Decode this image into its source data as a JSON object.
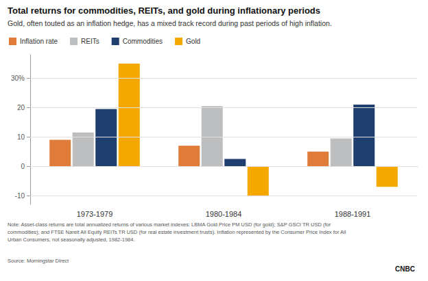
{
  "chart_data": {
    "type": "bar",
    "title": "Total returns for commodities, REITs, and gold during inflationary periods",
    "subtitle": "Gold, often touted as an inflation hedge, has a mixed track record during past periods of high inflation.",
    "categories": [
      "1973-1979",
      "1980-1984",
      "1988-1991"
    ],
    "series": [
      {
        "name": "Inflation rate",
        "color": "#E07B39",
        "values": [
          9.0,
          7.0,
          5.0
        ]
      },
      {
        "name": "REITs",
        "color": "#BCBEC0",
        "values": [
          11.5,
          20.5,
          9.5
        ]
      },
      {
        "name": "Commodities",
        "color": "#1F3F6E",
        "values": [
          19.5,
          2.5,
          21.0
        ]
      },
      {
        "name": "Gold",
        "color": "#F5A800",
        "values": [
          35.0,
          -10.0,
          -7.0
        ]
      }
    ],
    "ylim": [
      -13,
      38
    ],
    "yticks": [
      -10,
      0,
      10,
      20,
      {
        "value": 30,
        "label": "30%"
      }
    ],
    "grid": true,
    "legend": "upper left",
    "annotations": [
      "Note: Asset-class returns are total annualized returns of various market indexes: LBMA Gold Price PM USD (for gold); S&P GSCI TR USD (for\ncommodities); and FTSE Nareit All Equity REITs TR USD (for real estate investment trusts). Inflation represented by the Consumer Price Index for All\nUrban Consumers, not seasonally adjusted, 1982-1984.",
      "Source: Morningstar Direct",
      "CNBC"
    ]
  }
}
